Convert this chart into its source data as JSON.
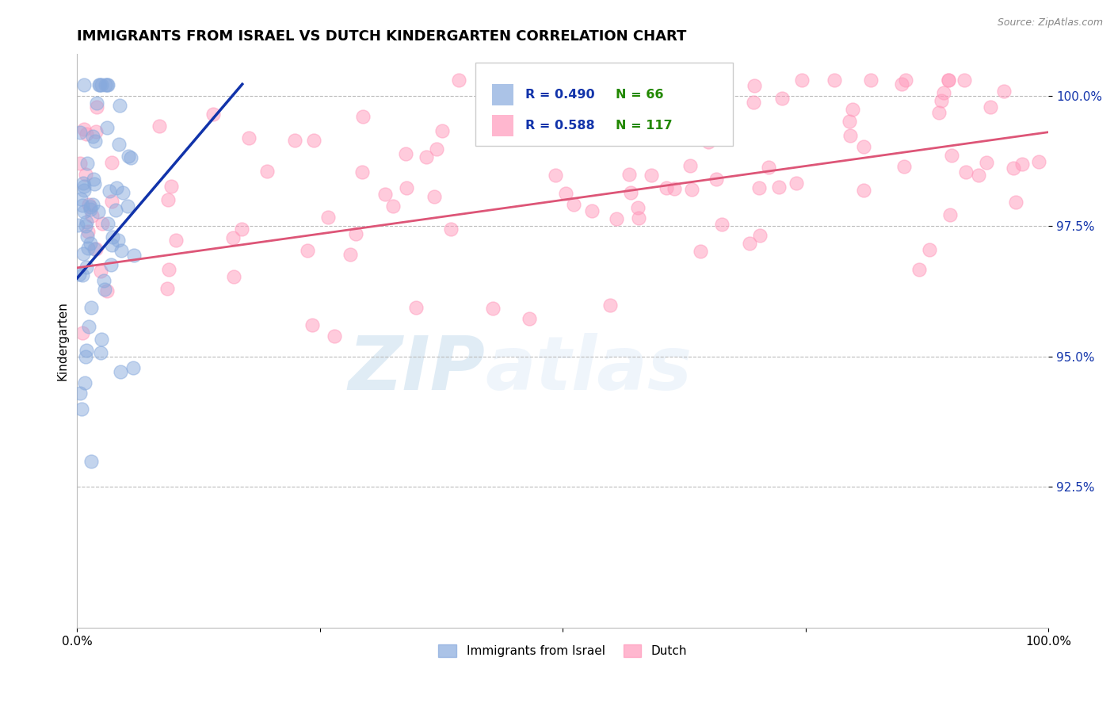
{
  "title": "IMMIGRANTS FROM ISRAEL VS DUTCH KINDERGARTEN CORRELATION CHART",
  "source_text": "Source: ZipAtlas.com",
  "xlabel": "",
  "ylabel": "Kindergarten",
  "x_min": 0.0,
  "x_max": 1.0,
  "y_min": 0.898,
  "y_max": 1.008,
  "x_ticks": [
    0.0,
    0.25,
    0.5,
    0.75,
    1.0
  ],
  "x_tick_labels": [
    "0.0%",
    "",
    "",
    "",
    "100.0%"
  ],
  "y_ticks": [
    0.925,
    0.95,
    0.975,
    1.0
  ],
  "y_tick_labels": [
    "92.5%",
    "95.0%",
    "97.5%",
    "100.0%"
  ],
  "blue_R": 0.49,
  "blue_N": 66,
  "pink_R": 0.588,
  "pink_N": 117,
  "blue_color": "#88AADD",
  "pink_color": "#FF99BB",
  "blue_edge_color": "#88AADD",
  "pink_edge_color": "#FF99BB",
  "blue_trend_color": "#1133AA",
  "pink_trend_color": "#DD5577",
  "legend_label_blue": "Immigrants from Israel",
  "legend_label_pink": "Dutch",
  "watermark_zip": "ZIP",
  "watermark_atlas": "atlas",
  "grid_color": "#BBBBBB",
  "title_fontsize": 13,
  "seed": 42
}
